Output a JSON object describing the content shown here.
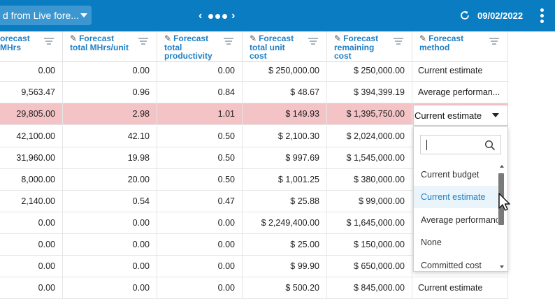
{
  "toolbar": {
    "view_label": "d from Live fore...",
    "date": "09/02/2022"
  },
  "columns": [
    {
      "title": [
        "orecast",
        "MHrs"
      ],
      "edit": false
    },
    {
      "title": [
        "Forecast",
        "total MHrs/unit"
      ],
      "edit": true
    },
    {
      "title": [
        "Forecast",
        "total",
        "productivity"
      ],
      "edit": true
    },
    {
      "title": [
        "Forecast",
        "total unit",
        "cost"
      ],
      "edit": true
    },
    {
      "title": [
        "Forecast",
        "remaining",
        "cost"
      ],
      "edit": true
    },
    {
      "title": [
        "Forecast",
        "method"
      ],
      "edit": true
    }
  ],
  "rows": [
    [
      "0.00",
      "0.00",
      "0.00",
      "$ 250,000.00",
      "$ 250,000.00",
      "Current estimate"
    ],
    [
      "9,563.47",
      "0.96",
      "0.84",
      "$ 48.67",
      "$ 394,399.19",
      "Average performan..."
    ],
    [
      "29,805.00",
      "2.98",
      "1.01",
      "$ 149.93",
      "$ 1,395,750.00",
      "Current estimate"
    ],
    [
      "42,100.00",
      "42.10",
      "0.50",
      "$ 2,100.30",
      "$ 2,024,000.00",
      ""
    ],
    [
      "31,960.00",
      "19.98",
      "0.50",
      "$ 997.69",
      "$ 1,545,000.00",
      ""
    ],
    [
      "8,000.00",
      "20.00",
      "0.50",
      "$ 1,001.25",
      "$ 380,000.00",
      ""
    ],
    [
      "2,140.00",
      "0.54",
      "0.47",
      "$ 25.88",
      "$ 99,000.00",
      ""
    ],
    [
      "0.00",
      "0.00",
      "0.00",
      "$ 2,249,400.00",
      "$ 1,645,000.00",
      ""
    ],
    [
      "0.00",
      "0.00",
      "0.00",
      "$ 25.00",
      "$ 150,000.00",
      ""
    ],
    [
      "0.00",
      "0.00",
      "0.00",
      "$ 99.90",
      "$ 650,000.00",
      ""
    ],
    [
      "0.00",
      "0.00",
      "0.00",
      "$ 500.20",
      "$ 845,000.00",
      "Current estimate"
    ]
  ],
  "selected_row": 2,
  "editor": {
    "value": "Current estimate"
  },
  "dropdown": {
    "search_placeholder": "",
    "options": [
      "Current budget",
      "Current estimate",
      "Average performance",
      "None",
      "Committed cost"
    ],
    "active_index": 1
  },
  "colors": {
    "header_bar": "#0a7cc1",
    "accent": "#1f7fc4",
    "selected_row": "#f3c3c6"
  },
  "icons": [
    "caret-down-icon",
    "chevron-left-icon",
    "chevron-right-icon",
    "refresh-icon",
    "kebab-menu-icon",
    "pencil-icon",
    "filter-icon",
    "search-icon",
    "mouse-pointer-icon"
  ]
}
